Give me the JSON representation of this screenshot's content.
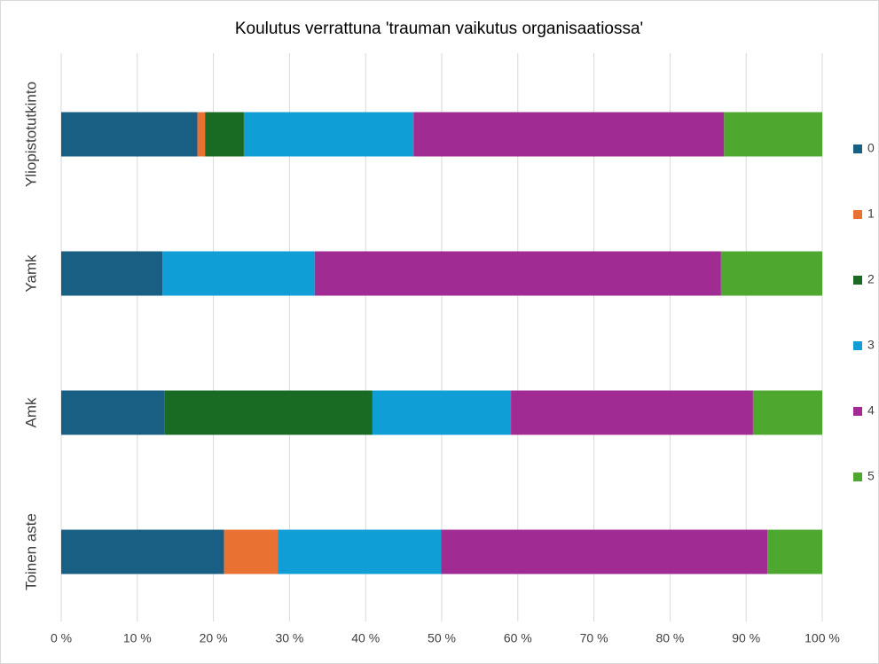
{
  "chart_data": {
    "type": "stacked-barh",
    "title": "Koulutus verrattuna 'trauman vaikutus organisaatiossa'",
    "categories": [
      "Yliopistotutkinto",
      "Yamk",
      "Amk",
      "Toinen aste"
    ],
    "series": [
      {
        "name": "0",
        "color": "#195e83",
        "values": [
          17.9,
          13.3,
          13.6,
          21.4
        ]
      },
      {
        "name": "1",
        "color": "#e97132",
        "values": [
          1.0,
          0,
          0,
          7.1
        ]
      },
      {
        "name": "2",
        "color": "#196b24",
        "values": [
          5.1,
          0,
          27.3,
          0
        ]
      },
      {
        "name": "3",
        "color": "#0f9ed5",
        "values": [
          22.3,
          20.0,
          18.2,
          21.4
        ]
      },
      {
        "name": "4",
        "color": "#a02b93",
        "values": [
          40.8,
          53.4,
          31.8,
          42.9
        ]
      },
      {
        "name": "5",
        "color": "#4ea72e",
        "values": [
          12.9,
          13.3,
          9.1,
          7.2
        ]
      }
    ],
    "xlim": [
      0,
      100
    ],
    "xticks": [
      {
        "value": 0,
        "label": "0 %"
      },
      {
        "value": 10,
        "label": "10 %"
      },
      {
        "value": 20,
        "label": "20 %"
      },
      {
        "value": 30,
        "label": "30 %"
      },
      {
        "value": 40,
        "label": "40 %"
      },
      {
        "value": 50,
        "label": "50 %"
      },
      {
        "value": 60,
        "label": "60 %"
      },
      {
        "value": 70,
        "label": "70 %"
      },
      {
        "value": 80,
        "label": "80 %"
      },
      {
        "value": 90,
        "label": "90 %"
      },
      {
        "value": 100,
        "label": "100 %"
      }
    ],
    "grid": true,
    "legend": "right"
  }
}
